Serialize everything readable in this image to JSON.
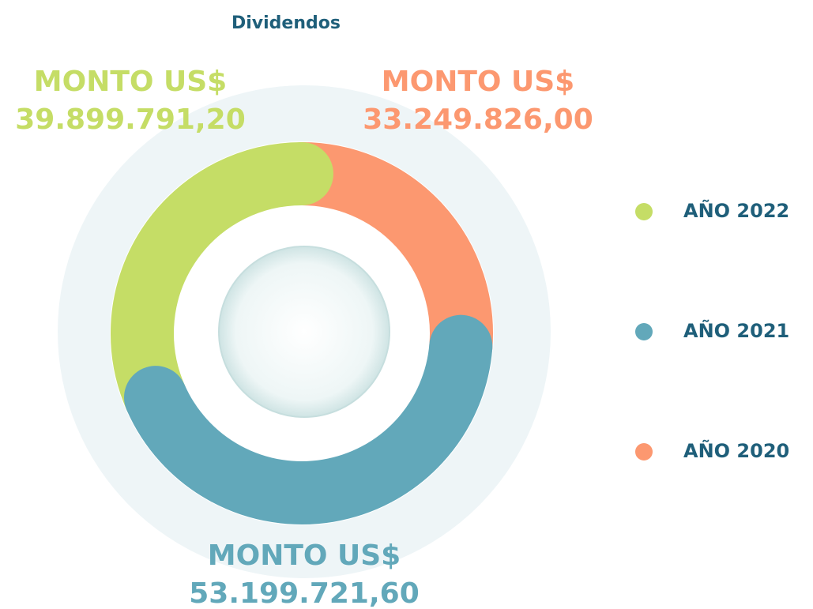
{
  "chart_data": {
    "type": "donut",
    "title": "Dividendos",
    "categories": [
      "AÑO 2022",
      "AÑO 2021",
      "AÑO 2020"
    ],
    "values": [
      39899791.2,
      53199721.6,
      33249826.0
    ],
    "value_labels": [
      "39.899.791,20",
      "53.199.721,60",
      "33.249.826,00"
    ],
    "annotations": [
      "MONTO US$",
      "MONTO US$",
      "MONTO US$"
    ],
    "colors": [
      "#c5dd66",
      "#62a8ba",
      "#fc9870"
    ],
    "legend": "right"
  }
}
